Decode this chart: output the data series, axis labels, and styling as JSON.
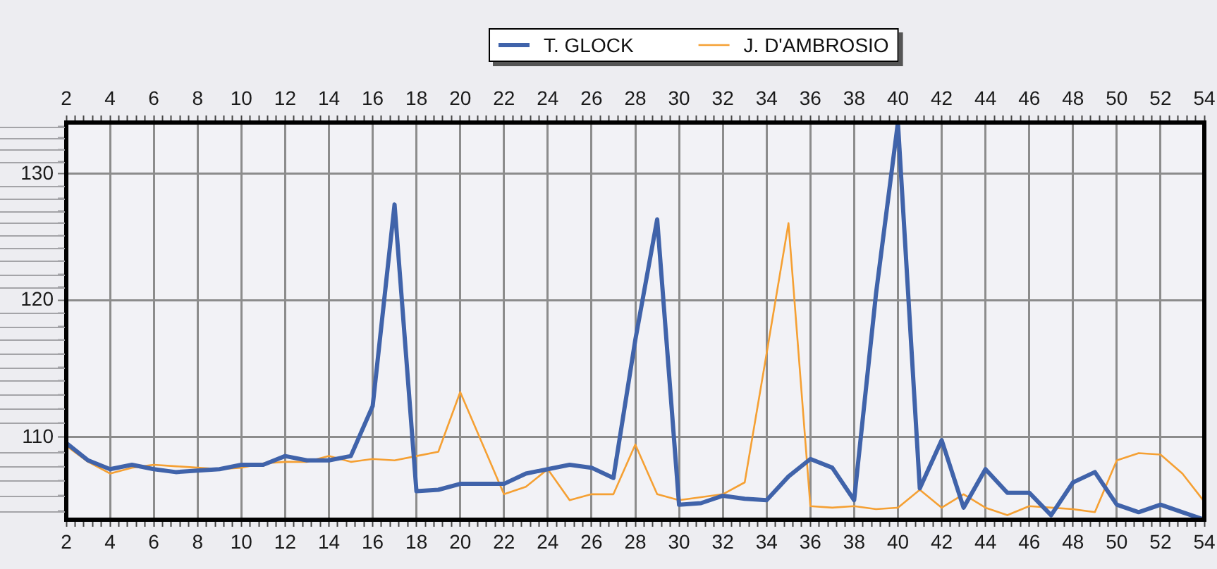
{
  "chart_data": {
    "type": "line",
    "x": [
      2,
      3,
      4,
      5,
      6,
      7,
      8,
      9,
      10,
      11,
      12,
      13,
      14,
      15,
      16,
      17,
      18,
      19,
      20,
      21,
      22,
      23,
      24,
      25,
      26,
      27,
      28,
      29,
      30,
      31,
      32,
      33,
      34,
      35,
      36,
      37,
      38,
      39,
      40,
      41,
      42,
      43,
      44,
      45,
      46,
      47,
      48,
      49,
      50,
      51,
      52,
      53,
      54
    ],
    "series": [
      {
        "name": "T. GLOCK",
        "color": "#4063aa",
        "values": [
          109.6,
          108.4,
          107.8,
          108.1,
          107.8,
          107.6,
          107.7,
          107.8,
          108.1,
          108.1,
          108.7,
          108.4,
          108.4,
          108.7,
          112.2,
          127.5,
          106.3,
          106.4,
          106.8,
          106.8,
          106.8,
          107.5,
          107.8,
          108.1,
          107.9,
          107.2,
          117.0,
          126.3,
          105.4,
          105.5,
          106.0,
          105.8,
          105.7,
          107.3,
          108.5,
          107.9,
          105.7,
          120.5,
          134.3,
          106.5,
          109.8,
          105.2,
          107.8,
          106.2,
          106.2,
          104.7,
          106.9,
          107.6,
          105.4,
          104.9,
          105.4,
          104.9,
          104.4
        ]
      },
      {
        "name": "J. D'AMBROSIO",
        "color": "#f5a033",
        "values": [
          109.4,
          108.3,
          107.5,
          107.9,
          108.1,
          108.0,
          107.9,
          107.8,
          107.9,
          108.2,
          108.3,
          108.3,
          108.7,
          108.3,
          108.5,
          108.4,
          108.7,
          109.0,
          113.2,
          109.6,
          106.1,
          106.6,
          107.8,
          105.7,
          106.1,
          106.1,
          109.5,
          106.1,
          105.7,
          105.9,
          106.1,
          106.9,
          116.0,
          126.0,
          105.3,
          105.2,
          105.3,
          105.1,
          105.2,
          106.4,
          105.2,
          106.1,
          105.2,
          104.7,
          105.3,
          105.2,
          105.1,
          104.9,
          108.4,
          108.9,
          108.8,
          107.5,
          105.6
        ]
      }
    ],
    "xlim": [
      2,
      54
    ],
    "xticks": [
      2,
      {
        "value": 2.4,
        "label": null
      },
      {
        "value": 2.8,
        "label": null
      },
      {
        "value": 3.2,
        "label": null
      },
      {
        "value": 3.6,
        "label": null
      },
      4,
      {
        "value": 4.4,
        "label": null
      },
      {
        "value": 4.8,
        "label": null
      },
      {
        "value": 5.2,
        "label": null
      },
      {
        "value": 5.6,
        "label": null
      },
      6,
      {
        "value": 6.4,
        "label": null
      },
      {
        "value": 6.8,
        "label": null
      },
      {
        "value": 7.2,
        "label": null
      },
      {
        "value": 7.6,
        "label": null
      },
      8,
      {
        "value": 8.4,
        "label": null
      },
      {
        "value": 8.8,
        "label": null
      },
      {
        "value": 9.2,
        "label": null
      },
      {
        "value": 9.6,
        "label": null
      },
      10,
      {
        "value": 10.4,
        "label": null
      },
      {
        "value": 10.8,
        "label": null
      },
      {
        "value": 11.2,
        "label": null
      },
      {
        "value": 11.6,
        "label": null
      },
      12,
      {
        "value": 12.4,
        "label": null
      },
      {
        "value": 12.8,
        "label": null
      },
      {
        "value": 13.2,
        "label": null
      },
      {
        "value": 13.6,
        "label": null
      },
      14,
      {
        "value": 14.4,
        "label": null
      },
      {
        "value": 14.8,
        "label": null
      },
      {
        "value": 15.2,
        "label": null
      },
      {
        "value": 15.6,
        "label": null
      },
      16,
      {
        "value": 16.4,
        "label": null
      },
      {
        "value": 16.8,
        "label": null
      },
      {
        "value": 17.2,
        "label": null
      },
      {
        "value": 17.6,
        "label": null
      },
      18,
      {
        "value": 18.4,
        "label": null
      },
      {
        "value": 18.8,
        "label": null
      },
      {
        "value": 19.2,
        "label": null
      },
      {
        "value": 19.6,
        "label": null
      },
      20,
      {
        "value": 20.4,
        "label": null
      },
      {
        "value": 20.8,
        "label": null
      },
      {
        "value": 21.2,
        "label": null
      },
      {
        "value": 21.6,
        "label": null
      },
      22,
      {
        "value": 22.4,
        "label": null
      },
      {
        "value": 22.8,
        "label": null
      },
      {
        "value": 23.2,
        "label": null
      },
      {
        "value": 23.6,
        "label": null
      },
      24,
      {
        "value": 24.4,
        "label": null
      },
      {
        "value": 24.8,
        "label": null
      },
      {
        "value": 25.2,
        "label": null
      },
      {
        "value": 25.6,
        "label": null
      },
      26,
      {
        "value": 26.4,
        "label": null
      },
      {
        "value": 26.8,
        "label": null
      },
      {
        "value": 27.2,
        "label": null
      },
      {
        "value": 27.6,
        "label": null
      },
      28,
      {
        "value": 28.4,
        "label": null
      },
      {
        "value": 28.8,
        "label": null
      },
      {
        "value": 29.2,
        "label": null
      },
      {
        "value": 29.6,
        "label": null
      },
      30,
      {
        "value": 30.4,
        "label": null
      },
      {
        "value": 30.8,
        "label": null
      },
      {
        "value": 31.2,
        "label": null
      },
      {
        "value": 31.6,
        "label": null
      },
      32,
      {
        "value": 32.4,
        "label": null
      },
      {
        "value": 32.8,
        "label": null
      },
      {
        "value": 33.2,
        "label": null
      },
      {
        "value": 33.6,
        "label": null
      },
      34,
      {
        "value": 34.4,
        "label": null
      },
      {
        "value": 34.8,
        "label": null
      },
      {
        "value": 35.2,
        "label": null
      },
      {
        "value": 35.6,
        "label": null
      },
      36,
      {
        "value": 36.4,
        "label": null
      },
      {
        "value": 36.8,
        "label": null
      },
      {
        "value": 37.2,
        "label": null
      },
      {
        "value": 37.6,
        "label": null
      },
      38,
      {
        "value": 38.4,
        "label": null
      },
      {
        "value": 38.8,
        "label": null
      },
      {
        "value": 39.2,
        "label": null
      },
      {
        "value": 39.6,
        "label": null
      },
      40,
      {
        "value": 40.4,
        "label": null
      },
      {
        "value": 40.8,
        "label": null
      },
      {
        "value": 41.2,
        "label": null
      },
      {
        "value": 41.6,
        "label": null
      },
      42,
      {
        "value": 42.4,
        "label": null
      },
      {
        "value": 42.8,
        "label": null
      },
      {
        "value": 43.2,
        "label": null
      },
      {
        "value": 43.6,
        "label": null
      },
      44,
      {
        "value": 44.4,
        "label": null
      },
      {
        "value": 44.8,
        "label": null
      },
      {
        "value": 45.2,
        "label": null
      },
      {
        "value": 45.6,
        "label": null
      },
      46,
      {
        "value": 46.4,
        "label": null
      },
      {
        "value": 46.8,
        "label": null
      },
      {
        "value": 47.2,
        "label": null
      },
      {
        "value": 47.6,
        "label": null
      },
      48,
      {
        "value": 48.4,
        "label": null
      },
      {
        "value": 48.8,
        "label": null
      },
      {
        "value": 49.2,
        "label": null
      },
      {
        "value": 49.6,
        "label": null
      },
      50,
      {
        "value": 50.4,
        "label": null
      },
      {
        "value": 50.8,
        "label": null
      },
      {
        "value": 51.2,
        "label": null
      },
      {
        "value": 51.6,
        "label": null
      },
      52,
      {
        "value": 52.4,
        "label": null
      },
      {
        "value": 52.8,
        "label": null
      },
      {
        "value": 53.2,
        "label": null
      },
      {
        "value": 53.6,
        "label": null
      },
      54
    ],
    "x2lim": [
      2,
      54
    ],
    "x2ticks": [
      2,
      {
        "value": 2.4,
        "label": null
      },
      {
        "value": 2.8,
        "label": null
      },
      {
        "value": 3.2,
        "label": null
      },
      {
        "value": 3.6,
        "label": null
      },
      4,
      {
        "value": 4.4,
        "label": null
      },
      {
        "value": 4.8,
        "label": null
      },
      {
        "value": 5.2,
        "label": null
      },
      {
        "value": 5.6,
        "label": null
      },
      6,
      {
        "value": 6.4,
        "label": null
      },
      {
        "value": 6.8,
        "label": null
      },
      {
        "value": 7.2,
        "label": null
      },
      {
        "value": 7.6,
        "label": null
      },
      8,
      {
        "value": 8.4,
        "label": null
      },
      {
        "value": 8.8,
        "label": null
      },
      {
        "value": 9.2,
        "label": null
      },
      {
        "value": 9.6,
        "label": null
      },
      10,
      {
        "value": 10.4,
        "label": null
      },
      {
        "value": 10.8,
        "label": null
      },
      {
        "value": 11.2,
        "label": null
      },
      {
        "value": 11.6,
        "label": null
      },
      12,
      {
        "value": 12.4,
        "label": null
      },
      {
        "value": 12.8,
        "label": null
      },
      {
        "value": 13.2,
        "label": null
      },
      {
        "value": 13.6,
        "label": null
      },
      14,
      {
        "value": 14.4,
        "label": null
      },
      {
        "value": 14.8,
        "label": null
      },
      {
        "value": 15.2,
        "label": null
      },
      {
        "value": 15.6,
        "label": null
      },
      16,
      {
        "value": 16.4,
        "label": null
      },
      {
        "value": 16.8,
        "label": null
      },
      {
        "value": 17.2,
        "label": null
      },
      {
        "value": 17.6,
        "label": null
      },
      18,
      {
        "value": 18.4,
        "label": null
      },
      {
        "value": 18.8,
        "label": null
      },
      {
        "value": 19.2,
        "label": null
      },
      {
        "value": 19.6,
        "label": null
      },
      20,
      {
        "value": 20.4,
        "label": null
      },
      {
        "value": 20.8,
        "label": null
      },
      {
        "value": 21.2,
        "label": null
      },
      {
        "value": 21.6,
        "label": null
      },
      22,
      {
        "value": 22.4,
        "label": null
      },
      {
        "value": 22.8,
        "label": null
      },
      {
        "value": 23.2,
        "label": null
      },
      {
        "value": 23.6,
        "label": null
      },
      24,
      {
        "value": 24.4,
        "label": null
      },
      {
        "value": 24.8,
        "label": null
      },
      {
        "value": 25.2,
        "label": null
      },
      {
        "value": 25.6,
        "label": null
      },
      26,
      {
        "value": 26.4,
        "label": null
      },
      {
        "value": 26.8,
        "label": null
      },
      {
        "value": 27.2,
        "label": null
      },
      {
        "value": 27.6,
        "label": null
      },
      28,
      {
        "value": 28.4,
        "label": null
      },
      {
        "value": 28.8,
        "label": null
      },
      {
        "value": 29.2,
        "label": null
      },
      {
        "value": 29.6,
        "label": null
      },
      30,
      {
        "value": 30.4,
        "label": null
      },
      {
        "value": 30.8,
        "label": null
      },
      {
        "value": 31.2,
        "label": null
      },
      {
        "value": 31.6,
        "label": null
      },
      32,
      {
        "value": 32.4,
        "label": null
      },
      {
        "value": 32.8,
        "label": null
      },
      {
        "value": 33.2,
        "label": null
      },
      {
        "value": 33.6,
        "label": null
      },
      34,
      {
        "value": 34.4,
        "label": null
      },
      {
        "value": 34.8,
        "label": null
      },
      {
        "value": 35.2,
        "label": null
      },
      {
        "value": 35.6,
        "label": null
      },
      36,
      {
        "value": 36.4,
        "label": null
      },
      {
        "value": 36.8,
        "label": null
      },
      {
        "value": 37.2,
        "label": null
      },
      {
        "value": 37.6,
        "label": null
      },
      38,
      {
        "value": 38.4,
        "label": null
      },
      {
        "value": 38.8,
        "label": null
      },
      {
        "value": 39.2,
        "label": null
      },
      {
        "value": 39.6,
        "label": null
      },
      40,
      {
        "value": 40.4,
        "label": null
      },
      {
        "value": 40.8,
        "label": null
      },
      {
        "value": 41.2,
        "label": null
      },
      {
        "value": 41.6,
        "label": null
      },
      42,
      {
        "value": 42.4,
        "label": null
      },
      {
        "value": 42.8,
        "label": null
      },
      {
        "value": 43.2,
        "label": null
      },
      {
        "value": 43.6,
        "label": null
      },
      44,
      {
        "value": 44.4,
        "label": null
      },
      {
        "value": 44.8,
        "label": null
      },
      {
        "value": 45.2,
        "label": null
      },
      {
        "value": 45.6,
        "label": null
      },
      46,
      {
        "value": 46.4,
        "label": null
      },
      {
        "value": 46.8,
        "label": null
      },
      {
        "value": 47.2,
        "label": null
      },
      {
        "value": 47.6,
        "label": null
      },
      48,
      {
        "value": 48.4,
        "label": null
      },
      {
        "value": 48.8,
        "label": null
      },
      {
        "value": 49.2,
        "label": null
      },
      {
        "value": 49.6,
        "label": null
      },
      50,
      {
        "value": 50.4,
        "label": null
      },
      {
        "value": 50.8,
        "label": null
      },
      {
        "value": 51.2,
        "label": null
      },
      {
        "value": 51.6,
        "label": null
      },
      52,
      {
        "value": 52.4,
        "label": null
      },
      {
        "value": 52.8,
        "label": null
      },
      {
        "value": 53.2,
        "label": null
      },
      {
        "value": 53.6,
        "label": null
      },
      54
    ],
    "ylim": [
      104.4,
      134.3
    ],
    "yticks": [
      {
        "value": 105,
        "label": null
      },
      {
        "value": 106,
        "label": null
      },
      {
        "value": 107,
        "label": null
      },
      {
        "value": 108,
        "label": null
      },
      {
        "value": 109,
        "label": null
      },
      110,
      {
        "value": 111,
        "label": null
      },
      {
        "value": 112,
        "label": null
      },
      {
        "value": 113,
        "label": null
      },
      {
        "value": 114,
        "label": null
      },
      {
        "value": 115,
        "label": null
      },
      {
        "value": 116,
        "label": null
      },
      {
        "value": 117,
        "label": null
      },
      {
        "value": 118,
        "label": null
      },
      {
        "value": 119,
        "label": null
      },
      120,
      {
        "value": 121,
        "label": null
      },
      {
        "value": 122,
        "label": null
      },
      {
        "value": 123,
        "label": null
      },
      {
        "value": 124,
        "label": null
      },
      {
        "value": 125,
        "label": null
      },
      {
        "value": 126,
        "label": null
      },
      {
        "value": 127,
        "label": null
      },
      {
        "value": 128,
        "label": null
      },
      {
        "value": 129,
        "label": null
      },
      130,
      {
        "value": 131,
        "label": null
      },
      {
        "value": 132,
        "label": null
      },
      {
        "value": 133,
        "label": null
      },
      {
        "value": 134,
        "label": null
      }
    ],
    "log": "y",
    "grid": true,
    "legend": "top",
    "marker": "none",
    "line_style": "solid"
  }
}
